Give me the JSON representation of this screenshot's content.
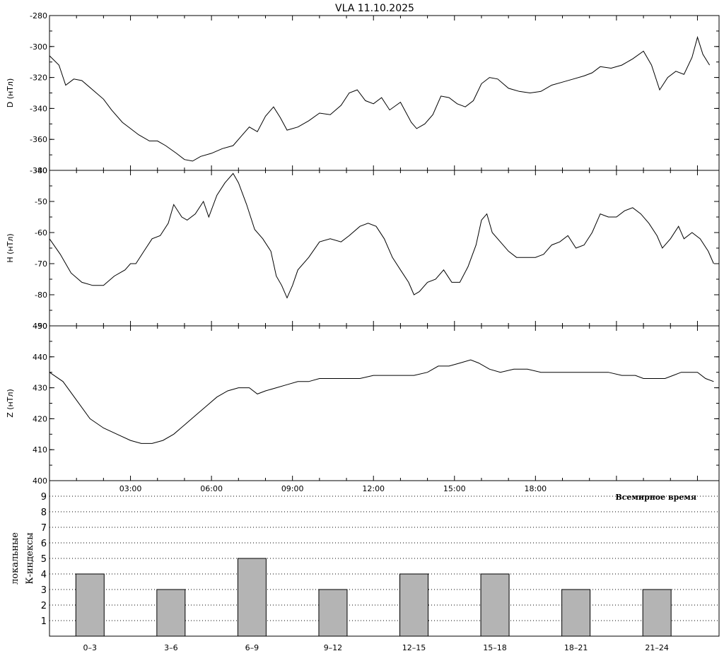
{
  "chart_data": [
    {
      "type": "line",
      "title": "VLA   11.10.2025",
      "ylabel": "D (нТл)",
      "ylim": [
        -380,
        -280
      ],
      "yticks": [
        -380,
        -360,
        -340,
        -320,
        -300,
        -280
      ],
      "x_unit": "hours",
      "series": [
        {
          "values": [
            [
              0.0,
              -306
            ],
            [
              0.35,
              -312
            ],
            [
              0.6,
              -325
            ],
            [
              0.9,
              -321
            ],
            [
              1.2,
              -322
            ],
            [
              1.6,
              -328
            ],
            [
              2.0,
              -334
            ],
            [
              2.3,
              -341
            ],
            [
              2.7,
              -349
            ],
            [
              3.0,
              -353
            ],
            [
              3.3,
              -357
            ],
            [
              3.7,
              -361
            ],
            [
              4.0,
              -361
            ],
            [
              4.3,
              -364
            ],
            [
              4.7,
              -369
            ],
            [
              5.0,
              -373
            ],
            [
              5.3,
              -374
            ],
            [
              5.6,
              -371
            ],
            [
              6.0,
              -369
            ],
            [
              6.4,
              -366
            ],
            [
              6.8,
              -364
            ],
            [
              7.1,
              -358
            ],
            [
              7.4,
              -352
            ],
            [
              7.7,
              -355
            ],
            [
              8.0,
              -345
            ],
            [
              8.3,
              -339
            ],
            [
              8.55,
              -346
            ],
            [
              8.8,
              -354
            ],
            [
              9.2,
              -352
            ],
            [
              9.6,
              -348
            ],
            [
              10.0,
              -343
            ],
            [
              10.4,
              -344
            ],
            [
              10.8,
              -338
            ],
            [
              11.1,
              -330
            ],
            [
              11.4,
              -328
            ],
            [
              11.7,
              -335
            ],
            [
              12.0,
              -337
            ],
            [
              12.3,
              -333
            ],
            [
              12.6,
              -341
            ],
            [
              13.0,
              -336
            ],
            [
              13.4,
              -349
            ],
            [
              13.6,
              -353
            ],
            [
              13.9,
              -350
            ],
            [
              14.2,
              -344
            ],
            [
              14.5,
              -332
            ],
            [
              14.8,
              -333
            ],
            [
              15.1,
              -337
            ],
            [
              15.4,
              -339
            ],
            [
              15.7,
              -335
            ],
            [
              16.0,
              -324
            ],
            [
              16.3,
              -320
            ],
            [
              16.6,
              -321
            ],
            [
              17.0,
              -327
            ],
            [
              17.4,
              -329
            ],
            [
              17.8,
              -330
            ],
            [
              18.2,
              -329
            ],
            [
              18.6,
              -325
            ],
            [
              19.0,
              -323
            ],
            [
              19.4,
              -321
            ],
            [
              19.8,
              -319
            ],
            [
              20.1,
              -317
            ],
            [
              20.4,
              -313
            ],
            [
              20.8,
              -314
            ],
            [
              21.2,
              -312
            ],
            [
              21.6,
              -308
            ],
            [
              22.0,
              -303
            ],
            [
              22.3,
              -312
            ],
            [
              22.6,
              -328
            ],
            [
              22.9,
              -320
            ],
            [
              23.2,
              -316
            ],
            [
              23.5,
              -318
            ],
            [
              23.8,
              -307
            ],
            [
              24.0,
              -294
            ],
            [
              24.2,
              -305
            ],
            [
              24.45,
              -312
            ]
          ]
        }
      ]
    },
    {
      "type": "line",
      "ylabel": "H (нТл)",
      "ylim": [
        -90,
        -40
      ],
      "yticks": [
        -90,
        -80,
        -70,
        -60,
        -50,
        -40
      ],
      "x_unit": "hours",
      "series": [
        {
          "values": [
            [
              0.0,
              -62
            ],
            [
              0.4,
              -67
            ],
            [
              0.8,
              -73
            ],
            [
              1.2,
              -76
            ],
            [
              1.6,
              -77
            ],
            [
              2.0,
              -77
            ],
            [
              2.4,
              -74
            ],
            [
              2.8,
              -72
            ],
            [
              3.0,
              -70
            ],
            [
              3.2,
              -70
            ],
            [
              3.5,
              -66
            ],
            [
              3.8,
              -62
            ],
            [
              4.1,
              -61
            ],
            [
              4.4,
              -57
            ],
            [
              4.6,
              -51
            ],
            [
              4.9,
              -55
            ],
            [
              5.1,
              -56
            ],
            [
              5.4,
              -54
            ],
            [
              5.7,
              -50
            ],
            [
              5.9,
              -55
            ],
            [
              6.2,
              -48
            ],
            [
              6.5,
              -44
            ],
            [
              6.8,
              -41
            ],
            [
              7.0,
              -44
            ],
            [
              7.3,
              -51
            ],
            [
              7.6,
              -59
            ],
            [
              7.9,
              -62
            ],
            [
              8.2,
              -66
            ],
            [
              8.4,
              -74
            ],
            [
              8.6,
              -77
            ],
            [
              8.8,
              -81
            ],
            [
              9.0,
              -77
            ],
            [
              9.2,
              -72
            ],
            [
              9.6,
              -68
            ],
            [
              10.0,
              -63
            ],
            [
              10.4,
              -62
            ],
            [
              10.8,
              -63
            ],
            [
              11.1,
              -61
            ],
            [
              11.5,
              -58
            ],
            [
              11.8,
              -57
            ],
            [
              12.1,
              -58
            ],
            [
              12.4,
              -62
            ],
            [
              12.7,
              -68
            ],
            [
              13.0,
              -72
            ],
            [
              13.3,
              -76
            ],
            [
              13.5,
              -80
            ],
            [
              13.7,
              -79
            ],
            [
              14.0,
              -76
            ],
            [
              14.3,
              -75
            ],
            [
              14.6,
              -72
            ],
            [
              14.9,
              -76
            ],
            [
              15.2,
              -76
            ],
            [
              15.5,
              -71
            ],
            [
              15.8,
              -64
            ],
            [
              16.0,
              -56
            ],
            [
              16.2,
              -54
            ],
            [
              16.4,
              -60
            ],
            [
              16.7,
              -63
            ],
            [
              17.0,
              -66
            ],
            [
              17.3,
              -68
            ],
            [
              17.6,
              -68
            ],
            [
              18.0,
              -68
            ],
            [
              18.3,
              -67
            ],
            [
              18.6,
              -64
            ],
            [
              18.9,
              -63
            ],
            [
              19.2,
              -61
            ],
            [
              19.5,
              -65
            ],
            [
              19.8,
              -64
            ],
            [
              20.1,
              -60
            ],
            [
              20.4,
              -54
            ],
            [
              20.7,
              -55
            ],
            [
              21.0,
              -55
            ],
            [
              21.3,
              -53
            ],
            [
              21.6,
              -52
            ],
            [
              21.9,
              -54
            ],
            [
              22.2,
              -57
            ],
            [
              22.5,
              -61
            ],
            [
              22.7,
              -65
            ],
            [
              23.0,
              -62
            ],
            [
              23.3,
              -58
            ],
            [
              23.5,
              -62
            ],
            [
              23.8,
              -60
            ],
            [
              24.1,
              -62
            ],
            [
              24.4,
              -66
            ],
            [
              24.6,
              -70
            ]
          ]
        }
      ]
    },
    {
      "type": "line",
      "ylabel": "Z (нТл)",
      "ylim": [
        400,
        450
      ],
      "yticks": [
        400,
        410,
        420,
        430,
        440,
        450
      ],
      "x_unit": "hours",
      "series": [
        {
          "values": [
            [
              0.0,
              435
            ],
            [
              0.5,
              432
            ],
            [
              1.0,
              426
            ],
            [
              1.5,
              420
            ],
            [
              2.0,
              417
            ],
            [
              2.5,
              415
            ],
            [
              3.0,
              413
            ],
            [
              3.4,
              412
            ],
            [
              3.8,
              412
            ],
            [
              4.2,
              413
            ],
            [
              4.6,
              415
            ],
            [
              5.0,
              418
            ],
            [
              5.4,
              421
            ],
            [
              5.8,
              424
            ],
            [
              6.2,
              427
            ],
            [
              6.6,
              429
            ],
            [
              7.0,
              430
            ],
            [
              7.4,
              430
            ],
            [
              7.7,
              428
            ],
            [
              8.0,
              429
            ],
            [
              8.4,
              430
            ],
            [
              8.8,
              431
            ],
            [
              9.2,
              432
            ],
            [
              9.6,
              432
            ],
            [
              10.0,
              433
            ],
            [
              10.5,
              433
            ],
            [
              11.0,
              433
            ],
            [
              11.5,
              433
            ],
            [
              12.0,
              434
            ],
            [
              12.5,
              434
            ],
            [
              13.0,
              434
            ],
            [
              13.5,
              434
            ],
            [
              14.0,
              435
            ],
            [
              14.4,
              437
            ],
            [
              14.8,
              437
            ],
            [
              15.2,
              438
            ],
            [
              15.6,
              439
            ],
            [
              15.9,
              438
            ],
            [
              16.3,
              436
            ],
            [
              16.7,
              435
            ],
            [
              17.2,
              436
            ],
            [
              17.7,
              436
            ],
            [
              18.2,
              435
            ],
            [
              18.7,
              435
            ],
            [
              19.2,
              435
            ],
            [
              19.7,
              435
            ],
            [
              20.2,
              435
            ],
            [
              20.7,
              435
            ],
            [
              21.2,
              434
            ],
            [
              21.7,
              434
            ],
            [
              22.0,
              433
            ],
            [
              22.4,
              433
            ],
            [
              22.8,
              433
            ],
            [
              23.1,
              434
            ],
            [
              23.4,
              435
            ],
            [
              23.7,
              435
            ],
            [
              24.0,
              435
            ],
            [
              24.3,
              433
            ],
            [
              24.6,
              432
            ]
          ]
        }
      ]
    },
    {
      "type": "bar",
      "ylabel": "локальные К-индексы",
      "xlabel": "Всемирное время",
      "ylim": [
        0,
        10
      ],
      "yticks": [
        1,
        2,
        3,
        4,
        5,
        6,
        7,
        8,
        9
      ],
      "categories": [
        "0–3",
        "3–6",
        "6–9",
        "9–12",
        "12–15",
        "15–18",
        "18–21",
        "21–24"
      ],
      "values": [
        4,
        3,
        5,
        3,
        4,
        4,
        3,
        3
      ]
    }
  ],
  "time_axis": {
    "tick_labels": [
      "03:00",
      "06:00",
      "09:00",
      "12:00",
      "15:00",
      "18:00"
    ]
  },
  "colors": {
    "line": "#000000",
    "bar_fill": "#b4b4b4",
    "grid": "#000000"
  }
}
